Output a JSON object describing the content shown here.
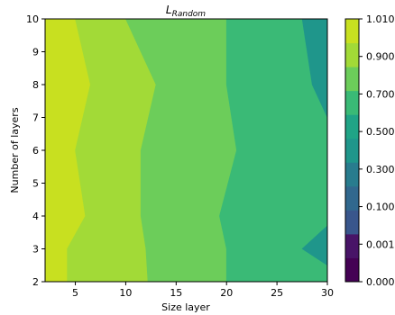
{
  "chart_data": {
    "type": "contourf",
    "title_base": "L",
    "title_sub": "Random",
    "xlabel": "Size layer",
    "ylabel": "Number of layers",
    "xlim": [
      2,
      30
    ],
    "ylim": [
      2,
      10
    ],
    "xticks": [
      5,
      10,
      15,
      20,
      25,
      30
    ],
    "yticks": [
      2,
      3,
      4,
      5,
      6,
      7,
      8,
      9,
      10
    ],
    "colorbar": {
      "levels": [
        {
          "label": "0.000",
          "color": "#440154"
        },
        {
          "label": "0.001",
          "color": "#46085c"
        },
        {
          "label": "0.100",
          "color": "#472d7b"
        },
        {
          "label": "0.300",
          "color": "#3b528b"
        },
        {
          "label": "0.500",
          "color": "#2c728e"
        },
        {
          "label": "0.700",
          "color": "#21918c"
        },
        {
          "label": "0.900",
          "color": "#28ae80"
        },
        {
          "label": "1.010",
          "color": "#5ec962"
        }
      ],
      "band_colors": [
        "#440154",
        "#481467",
        "#39568c",
        "#31688e",
        "#287c8e",
        "#1f968b",
        "#20a486",
        "#3aba76",
        "#6ccd5a",
        "#a2da37",
        "#c8e020"
      ]
    },
    "regions": [
      {
        "level_color": "#c8e020",
        "boundary": [
          [
            2,
            2
          ],
          [
            4.2,
            2
          ],
          [
            4.2,
            3
          ],
          [
            6,
            4
          ],
          [
            5,
            6
          ],
          [
            6.5,
            8
          ],
          [
            5,
            10
          ],
          [
            2,
            10
          ]
        ]
      },
      {
        "level_color": "#a2da37",
        "boundary": [
          [
            4.2,
            2
          ],
          [
            12.2,
            2
          ],
          [
            12,
            3
          ],
          [
            11.5,
            4
          ],
          [
            11.5,
            6
          ],
          [
            13,
            8
          ],
          [
            10,
            10
          ],
          [
            5,
            10
          ],
          [
            6.5,
            8
          ],
          [
            5,
            6
          ],
          [
            6,
            4
          ],
          [
            4.2,
            3
          ]
        ]
      },
      {
        "level_color": "#6ccd5a",
        "boundary": [
          [
            12.2,
            2
          ],
          [
            20,
            2
          ],
          [
            20,
            3
          ],
          [
            19.3,
            4
          ],
          [
            21,
            6
          ],
          [
            20,
            8
          ],
          [
            20,
            10
          ],
          [
            10,
            10
          ],
          [
            13,
            8
          ],
          [
            11.5,
            6
          ],
          [
            11.5,
            4
          ],
          [
            12,
            3
          ]
        ]
      },
      {
        "level_color": "#3aba76",
        "boundary": [
          [
            20,
            2
          ],
          [
            30,
            2
          ],
          [
            30,
            2.5
          ],
          [
            27.5,
            3
          ],
          [
            30,
            3.7
          ],
          [
            30,
            7
          ],
          [
            28.5,
            8
          ],
          [
            27.5,
            10
          ],
          [
            20,
            10
          ],
          [
            20,
            8
          ],
          [
            21,
            6
          ],
          [
            19.3,
            4
          ],
          [
            20,
            3
          ]
        ]
      },
      {
        "level_color": "#1f968b",
        "boundary": [
          [
            27.5,
            10
          ],
          [
            30,
            10
          ],
          [
            30,
            7
          ],
          [
            28.5,
            8
          ]
        ]
      },
      {
        "level_color": "#1f968b",
        "boundary": [
          [
            30,
            2.5
          ],
          [
            27.5,
            3
          ],
          [
            30,
            3.7
          ]
        ]
      }
    ]
  }
}
